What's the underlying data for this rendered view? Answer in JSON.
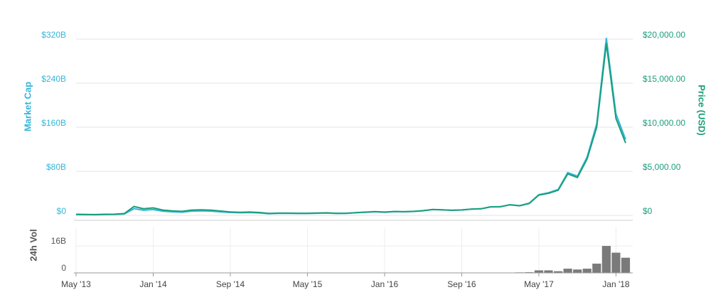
{
  "chart_data": [
    {
      "type": "line",
      "x": [
        "2013-05",
        "2013-06",
        "2013-07",
        "2013-08",
        "2013-09",
        "2013-10",
        "2013-11",
        "2013-12",
        "2014-01",
        "2014-02",
        "2014-03",
        "2014-04",
        "2014-05",
        "2014-06",
        "2014-07",
        "2014-08",
        "2014-09",
        "2014-10",
        "2014-11",
        "2014-12",
        "2015-01",
        "2015-02",
        "2015-03",
        "2015-04",
        "2015-05",
        "2015-06",
        "2015-07",
        "2015-08",
        "2015-09",
        "2015-10",
        "2015-11",
        "2015-12",
        "2016-01",
        "2016-02",
        "2016-03",
        "2016-04",
        "2016-05",
        "2016-06",
        "2016-07",
        "2016-08",
        "2016-09",
        "2016-10",
        "2016-11",
        "2016-12",
        "2017-01",
        "2017-02",
        "2017-03",
        "2017-04",
        "2017-05",
        "2017-06",
        "2017-07",
        "2017-08",
        "2017-09",
        "2017-10",
        "2017-11",
        "2017-12",
        "2018-01",
        "2018-02"
      ],
      "xlim": [
        "2013-05",
        "2018-02"
      ],
      "series": [
        {
          "name": "Market Cap",
          "color": "#35b6da",
          "axis": "y",
          "values": [
            1300000000.0,
            1100000000.0,
            1000000000.0,
            1400000000.0,
            1500000000.0,
            2400000000.0,
            12000000000.0,
            9200000000.0,
            10500000000.0,
            7500000000.0,
            6300000000.0,
            5700000000.0,
            7600000000.0,
            8000000000.0,
            7600000000.0,
            6300000000.0,
            5200000000.0,
            4600000000.0,
            5000000000.0,
            4400000000.0,
            3000000000.0,
            3500000000.0,
            3500000000.0,
            3300000000.0,
            3400000000.0,
            3800000000.0,
            4100000000.0,
            3400000000.0,
            3500000000.0,
            4600000000.0,
            5400000000.0,
            6500000000.0,
            5600000000.0,
            6700000000.0,
            6400000000.0,
            7000000000.0,
            8200000000.0,
            10400000000.0,
            9800000000.0,
            9100000000.0,
            9700000000.0,
            11200000000.0,
            11900000000.0,
            15500000000.0,
            15700000000.0,
            19300000000.0,
            17600000000.0,
            22000000000.0,
            37600000000.0,
            41000000000.0,
            47000000000.0,
            77600000000.0,
            71200000000.0,
            106000000000.0,
            166000000000.0,
            322000000000.0,
            184000000000.0,
            138000000000.0
          ]
        },
        {
          "name": "Price (USD)",
          "color": "#1a9e7a",
          "axis": "y2",
          "values": [
            120,
            100,
            90,
            120,
            130,
            200,
            1000,
            750,
            850,
            600,
            500,
            450,
            600,
            620,
            590,
            480,
            390,
            340,
            370,
            320,
            220,
            250,
            250,
            230,
            235,
            260,
            280,
            230,
            235,
            310,
            360,
            430,
            370,
            435,
            415,
            450,
            530,
            670,
            620,
            575,
            610,
            700,
            740,
            960,
            970,
            1190,
            1080,
            1350,
            2300,
            2500,
            2850,
            4700,
            4300,
            6400,
            10000,
            19500,
            11000,
            8200
          ]
        }
      ],
      "ylim": [
        0,
        320000000000
      ],
      "yticks": [
        {
          "value": 0,
          "label": "$0"
        },
        {
          "value": 80000000000,
          "label": "$80B"
        },
        {
          "value": 160000000000,
          "label": "$160B"
        },
        {
          "value": 240000000000,
          "label": "$240B"
        },
        {
          "value": 320000000000,
          "label": "$320B"
        }
      ],
      "y2lim": [
        0,
        20000
      ],
      "y2ticks": [
        {
          "value": 0,
          "label": "$0"
        },
        {
          "value": 5000,
          "label": "$5,000.00"
        },
        {
          "value": 10000,
          "label": "$10,000.00"
        },
        {
          "value": 15000,
          "label": "$15,000.00"
        },
        {
          "value": 20000,
          "label": "$20,000.00"
        }
      ],
      "grid": true
    },
    {
      "type": "bar",
      "x": [
        "2013-05",
        "2013-06",
        "2013-07",
        "2013-08",
        "2013-09",
        "2013-10",
        "2013-11",
        "2013-12",
        "2014-01",
        "2014-02",
        "2014-03",
        "2014-04",
        "2014-05",
        "2014-06",
        "2014-07",
        "2014-08",
        "2014-09",
        "2014-10",
        "2014-11",
        "2014-12",
        "2015-01",
        "2015-02",
        "2015-03",
        "2015-04",
        "2015-05",
        "2015-06",
        "2015-07",
        "2015-08",
        "2015-09",
        "2015-10",
        "2015-11",
        "2015-12",
        "2016-01",
        "2016-02",
        "2016-03",
        "2016-04",
        "2016-05",
        "2016-06",
        "2016-07",
        "2016-08",
        "2016-09",
        "2016-10",
        "2016-11",
        "2016-12",
        "2017-01",
        "2017-02",
        "2017-03",
        "2017-04",
        "2017-05",
        "2017-06",
        "2017-07",
        "2017-08",
        "2017-09",
        "2017-10",
        "2017-11",
        "2017-12",
        "2018-01",
        "2018-02"
      ],
      "xlim": [
        "2013-05",
        "2018-02"
      ],
      "series": [
        {
          "name": "24h Vol",
          "color": "#7a7a7a",
          "values": [
            0,
            0,
            0,
            0,
            0,
            0,
            0,
            0,
            0,
            0,
            0,
            0,
            0,
            0,
            0,
            0,
            0,
            0,
            0,
            0,
            0,
            0,
            0,
            0,
            0,
            0,
            0,
            0,
            0,
            0,
            0,
            0,
            0,
            0,
            0,
            0,
            0,
            0,
            0,
            0,
            0,
            0,
            0,
            0,
            200000000,
            150000000,
            300000000,
            400000000,
            1500000000,
            1500000000,
            1000000000,
            2500000000,
            2000000000,
            2500000000,
            5500000000,
            16000000000,
            12000000000,
            9000000000
          ]
        }
      ],
      "ylim": [
        0,
        27000000000
      ],
      "yticks": [
        {
          "value": 0,
          "label": "0"
        },
        {
          "value": 16000000000,
          "label": "16B"
        }
      ],
      "xticks": [
        {
          "value": "2013-05",
          "label": "May '13"
        },
        {
          "value": "2014-01",
          "label": "Jan '14"
        },
        {
          "value": "2014-09",
          "label": "Sep '14"
        },
        {
          "value": "2015-05",
          "label": "May '15"
        },
        {
          "value": "2016-01",
          "label": "Jan '16"
        },
        {
          "value": "2016-09",
          "label": "Sep '16"
        },
        {
          "value": "2017-05",
          "label": "May '17"
        },
        {
          "value": "2018-01",
          "label": "Jan '18"
        }
      ],
      "grid": true
    }
  ]
}
